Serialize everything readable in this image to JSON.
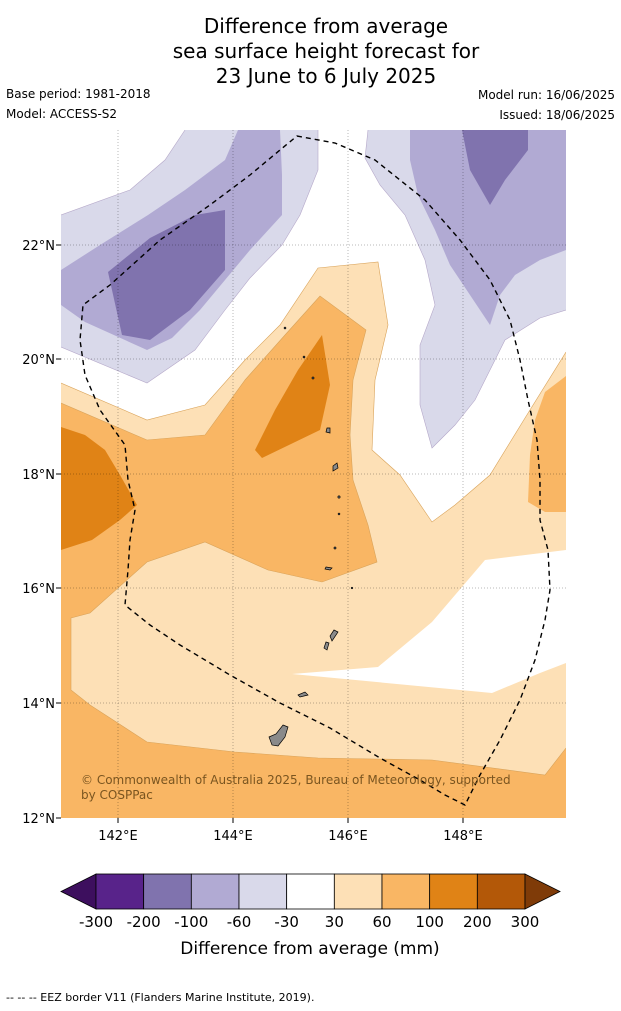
{
  "title": {
    "line1": "Difference from average",
    "line2": "sea surface height forecast for",
    "line3": "23 June to 6 July 2025"
  },
  "meta": {
    "base_period": "Base period: 1981-2018",
    "model": "Model: ACCESS-S2",
    "model_run": "Model run: 16/06/2025",
    "issued": "Issued: 18/06/2025"
  },
  "map": {
    "lat_labels": [
      "22°N",
      "20°N",
      "18°N",
      "16°N",
      "14°N",
      "12°N"
    ],
    "lon_labels": [
      "142°E",
      "144°E",
      "146°E",
      "148°E"
    ],
    "copyright": "© Commonwealth of Australia 2025, Bureau of Meteorology, supported by COSPPac",
    "copyright_line1": "© Commonwealth of Australia 2025, Bureau of Meteorology, supported",
    "copyright_line2": "by COSPPac",
    "ocean_color": "#ffffff",
    "land_color": "#8a8a8a"
  },
  "colorbar": {
    "label": "Difference from average (mm)",
    "ticks": [
      "-300",
      "-200",
      "-100",
      "-60",
      "-30",
      "30",
      "60",
      "100",
      "200",
      "300"
    ],
    "colors": [
      "#3d0f5e",
      "#58238a",
      "#8073ae",
      "#b1aad3",
      "#d9d9ea",
      "#ffffff",
      "#fde0b6",
      "#f9b664",
      "#e08316",
      "#b35808",
      "#7f3b08"
    ]
  },
  "footer": {
    "legend": "--  --  -- EEZ border V11 (Flanders Marine Institute, 2019)."
  }
}
